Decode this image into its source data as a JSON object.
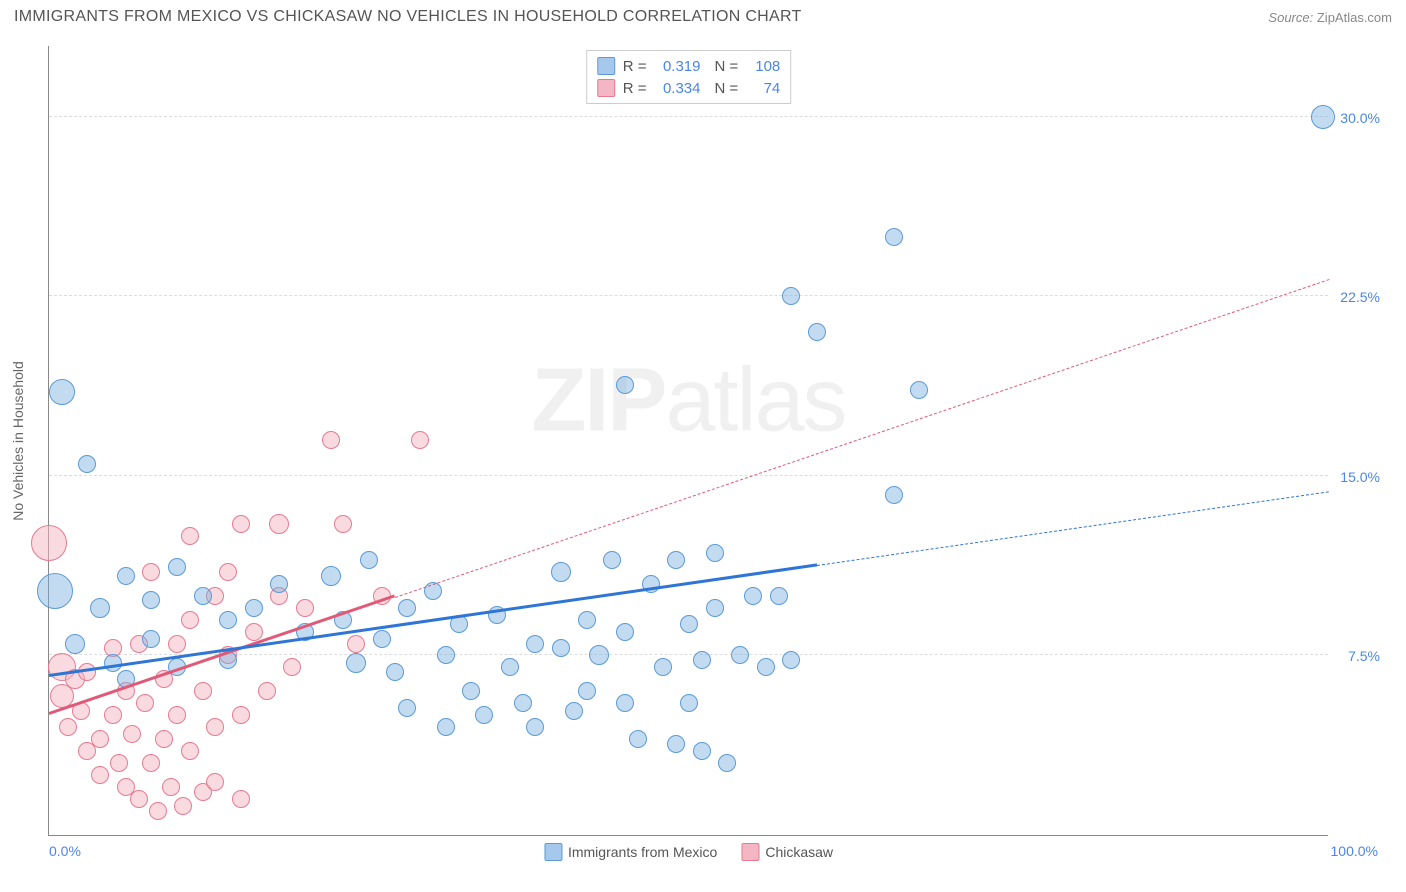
{
  "header": {
    "title": "IMMIGRANTS FROM MEXICO VS CHICKASAW NO VEHICLES IN HOUSEHOLD CORRELATION CHART",
    "source_label": "Source:",
    "source_value": "ZipAtlas.com"
  },
  "chart": {
    "type": "scatter",
    "ylabel": "No Vehicles in Household",
    "xlim": [
      0,
      100
    ],
    "ylim": [
      0,
      33
    ],
    "background_color": "#ffffff",
    "grid_color": "#dddddd",
    "axis_color": "#888888",
    "label_color": "#666666",
    "tick_color": "#4a86e8",
    "x_ticks": [
      {
        "v": 0,
        "label": "0.0%"
      },
      {
        "v": 100,
        "label": "100.0%"
      }
    ],
    "y_ticks": [
      {
        "v": 7.5,
        "label": "7.5%"
      },
      {
        "v": 15.0,
        "label": "15.0%"
      },
      {
        "v": 22.5,
        "label": "22.5%"
      },
      {
        "v": 30.0,
        "label": "30.0%"
      }
    ],
    "watermark": {
      "text_bold": "ZIP",
      "text_light": "atlas"
    },
    "top_legend": {
      "r_label": "R =",
      "n_label": "N =",
      "rows": [
        {
          "swatch_fill": "#a6c8ec",
          "swatch_stroke": "#5b9bd5",
          "r": "0.319",
          "n": "108"
        },
        {
          "swatch_fill": "#f4b6c2",
          "swatch_stroke": "#e87a90",
          "r": "0.334",
          "n": "74"
        }
      ]
    },
    "bottom_legend": [
      {
        "label": "Immigrants from Mexico",
        "fill": "#a6c8ec",
        "stroke": "#5b9bd5"
      },
      {
        "label": "Chickasaw",
        "fill": "#f4b6c2",
        "stroke": "#e87a90"
      }
    ],
    "series_blue": {
      "fill": "rgba(123,175,222,0.45)",
      "stroke": "#5b9bd5",
      "marker_radius": 8,
      "trend": {
        "x1": 0,
        "y1": 6.6,
        "x2": 100,
        "y2": 14.3,
        "color": "#2e75d6",
        "solid_until_x": 60
      },
      "points": [
        {
          "x": 1,
          "y": 18.5,
          "r": 13
        },
        {
          "x": 0.5,
          "y": 10.2,
          "r": 18
        },
        {
          "x": 99.5,
          "y": 30.0,
          "r": 12
        },
        {
          "x": 66,
          "y": 25.0,
          "r": 9
        },
        {
          "x": 58,
          "y": 22.5,
          "r": 9
        },
        {
          "x": 60,
          "y": 21.0,
          "r": 9
        },
        {
          "x": 45,
          "y": 18.8,
          "r": 9
        },
        {
          "x": 68,
          "y": 18.6,
          "r": 9
        },
        {
          "x": 66,
          "y": 14.2,
          "r": 9
        },
        {
          "x": 3,
          "y": 15.5,
          "r": 9
        },
        {
          "x": 6,
          "y": 10.8,
          "r": 9
        },
        {
          "x": 4,
          "y": 9.5,
          "r": 10
        },
        {
          "x": 2,
          "y": 8.0,
          "r": 10
        },
        {
          "x": 5,
          "y": 7.2,
          "r": 9
        },
        {
          "x": 8,
          "y": 9.8,
          "r": 9
        },
        {
          "x": 10,
          "y": 11.2,
          "r": 9
        },
        {
          "x": 8,
          "y": 8.2,
          "r": 9
        },
        {
          "x": 12,
          "y": 10.0,
          "r": 9
        },
        {
          "x": 6,
          "y": 6.5,
          "r": 9
        },
        {
          "x": 10,
          "y": 7.0,
          "r": 9
        },
        {
          "x": 14,
          "y": 9.0,
          "r": 9
        },
        {
          "x": 16,
          "y": 9.5,
          "r": 9
        },
        {
          "x": 14,
          "y": 7.3,
          "r": 9
        },
        {
          "x": 18,
          "y": 10.5,
          "r": 9
        },
        {
          "x": 20,
          "y": 8.5,
          "r": 9
        },
        {
          "x": 22,
          "y": 10.8,
          "r": 10
        },
        {
          "x": 23,
          "y": 9.0,
          "r": 9
        },
        {
          "x": 24,
          "y": 7.2,
          "r": 10
        },
        {
          "x": 25,
          "y": 11.5,
          "r": 9
        },
        {
          "x": 26,
          "y": 8.2,
          "r": 9
        },
        {
          "x": 28,
          "y": 9.5,
          "r": 9
        },
        {
          "x": 27,
          "y": 6.8,
          "r": 9
        },
        {
          "x": 28,
          "y": 5.3,
          "r": 9
        },
        {
          "x": 30,
          "y": 10.2,
          "r": 9
        },
        {
          "x": 31,
          "y": 7.5,
          "r": 9
        },
        {
          "x": 32,
          "y": 8.8,
          "r": 9
        },
        {
          "x": 33,
          "y": 6.0,
          "r": 9
        },
        {
          "x": 31,
          "y": 4.5,
          "r": 9
        },
        {
          "x": 34,
          "y": 5.0,
          "r": 9
        },
        {
          "x": 35,
          "y": 9.2,
          "r": 9
        },
        {
          "x": 36,
          "y": 7.0,
          "r": 9
        },
        {
          "x": 37,
          "y": 5.5,
          "r": 9
        },
        {
          "x": 38,
          "y": 8.0,
          "r": 9
        },
        {
          "x": 38,
          "y": 4.5,
          "r": 9
        },
        {
          "x": 40,
          "y": 11.0,
          "r": 10
        },
        {
          "x": 40,
          "y": 7.8,
          "r": 9
        },
        {
          "x": 41,
          "y": 5.2,
          "r": 9
        },
        {
          "x": 42,
          "y": 9.0,
          "r": 9
        },
        {
          "x": 42,
          "y": 6.0,
          "r": 9
        },
        {
          "x": 44,
          "y": 11.5,
          "r": 9
        },
        {
          "x": 43,
          "y": 7.5,
          "r": 10
        },
        {
          "x": 45,
          "y": 5.5,
          "r": 9
        },
        {
          "x": 45,
          "y": 8.5,
          "r": 9
        },
        {
          "x": 46,
          "y": 4.0,
          "r": 9
        },
        {
          "x": 47,
          "y": 10.5,
          "r": 9
        },
        {
          "x": 48,
          "y": 7.0,
          "r": 9
        },
        {
          "x": 49,
          "y": 11.5,
          "r": 9
        },
        {
          "x": 49,
          "y": 3.8,
          "r": 9
        },
        {
          "x": 50,
          "y": 8.8,
          "r": 9
        },
        {
          "x": 50,
          "y": 5.5,
          "r": 9
        },
        {
          "x": 51,
          "y": 7.3,
          "r": 9
        },
        {
          "x": 51,
          "y": 3.5,
          "r": 9
        },
        {
          "x": 52,
          "y": 11.8,
          "r": 9
        },
        {
          "x": 52,
          "y": 9.5,
          "r": 9
        },
        {
          "x": 53,
          "y": 3.0,
          "r": 9
        },
        {
          "x": 54,
          "y": 7.5,
          "r": 9
        },
        {
          "x": 55,
          "y": 10.0,
          "r": 9
        },
        {
          "x": 56,
          "y": 7.0,
          "r": 9
        },
        {
          "x": 57,
          "y": 10.0,
          "r": 9
        },
        {
          "x": 58,
          "y": 7.3,
          "r": 9
        }
      ]
    },
    "series_pink": {
      "fill": "rgba(244,182,194,0.5)",
      "stroke": "#e87a90",
      "marker_radius": 8,
      "trend": {
        "x1": 0,
        "y1": 5.0,
        "x2": 100,
        "y2": 23.2,
        "color": "#e05a78",
        "solid_until_x": 27
      },
      "points": [
        {
          "x": 0,
          "y": 12.2,
          "r": 18
        },
        {
          "x": 1,
          "y": 7.0,
          "r": 14
        },
        {
          "x": 1,
          "y": 5.8,
          "r": 12
        },
        {
          "x": 2,
          "y": 6.5,
          "r": 10
        },
        {
          "x": 1.5,
          "y": 4.5,
          "r": 9
        },
        {
          "x": 2.5,
          "y": 5.2,
          "r": 9
        },
        {
          "x": 3,
          "y": 3.5,
          "r": 9
        },
        {
          "x": 3,
          "y": 6.8,
          "r": 9
        },
        {
          "x": 4,
          "y": 4.0,
          "r": 9
        },
        {
          "x": 4,
          "y": 2.5,
          "r": 9
        },
        {
          "x": 5,
          "y": 5.0,
          "r": 9
        },
        {
          "x": 5,
          "y": 7.8,
          "r": 9
        },
        {
          "x": 5.5,
          "y": 3.0,
          "r": 9
        },
        {
          "x": 6,
          "y": 6.0,
          "r": 9
        },
        {
          "x": 6,
          "y": 2.0,
          "r": 9
        },
        {
          "x": 6.5,
          "y": 4.2,
          "r": 9
        },
        {
          "x": 7,
          "y": 8.0,
          "r": 9
        },
        {
          "x": 7,
          "y": 1.5,
          "r": 9
        },
        {
          "x": 7.5,
          "y": 5.5,
          "r": 9
        },
        {
          "x": 8,
          "y": 3.0,
          "r": 9
        },
        {
          "x": 8,
          "y": 11.0,
          "r": 9
        },
        {
          "x": 8.5,
          "y": 1.0,
          "r": 9
        },
        {
          "x": 9,
          "y": 6.5,
          "r": 9
        },
        {
          "x": 9,
          "y": 4.0,
          "r": 9
        },
        {
          "x": 9.5,
          "y": 2.0,
          "r": 9
        },
        {
          "x": 10,
          "y": 8.0,
          "r": 9
        },
        {
          "x": 10,
          "y": 5.0,
          "r": 9
        },
        {
          "x": 10.5,
          "y": 1.2,
          "r": 9
        },
        {
          "x": 11,
          "y": 12.5,
          "r": 9
        },
        {
          "x": 11,
          "y": 9.0,
          "r": 9
        },
        {
          "x": 11,
          "y": 3.5,
          "r": 9
        },
        {
          "x": 12,
          "y": 6.0,
          "r": 9
        },
        {
          "x": 12,
          "y": 1.8,
          "r": 9
        },
        {
          "x": 13,
          "y": 10.0,
          "r": 9
        },
        {
          "x": 13,
          "y": 4.5,
          "r": 9
        },
        {
          "x": 13,
          "y": 2.2,
          "r": 9
        },
        {
          "x": 14,
          "y": 7.5,
          "r": 9
        },
        {
          "x": 14,
          "y": 11.0,
          "r": 9
        },
        {
          "x": 15,
          "y": 5.0,
          "r": 9
        },
        {
          "x": 15,
          "y": 1.5,
          "r": 9
        },
        {
          "x": 15,
          "y": 13.0,
          "r": 9
        },
        {
          "x": 16,
          "y": 8.5,
          "r": 9
        },
        {
          "x": 17,
          "y": 6.0,
          "r": 9
        },
        {
          "x": 18,
          "y": 13.0,
          "r": 10
        },
        {
          "x": 18,
          "y": 10.0,
          "r": 9
        },
        {
          "x": 19,
          "y": 7.0,
          "r": 9
        },
        {
          "x": 20,
          "y": 9.5,
          "r": 9
        },
        {
          "x": 22,
          "y": 16.5,
          "r": 9
        },
        {
          "x": 23,
          "y": 13.0,
          "r": 9
        },
        {
          "x": 24,
          "y": 8.0,
          "r": 9
        },
        {
          "x": 26,
          "y": 10.0,
          "r": 9
        },
        {
          "x": 29,
          "y": 16.5,
          "r": 9
        }
      ]
    }
  }
}
